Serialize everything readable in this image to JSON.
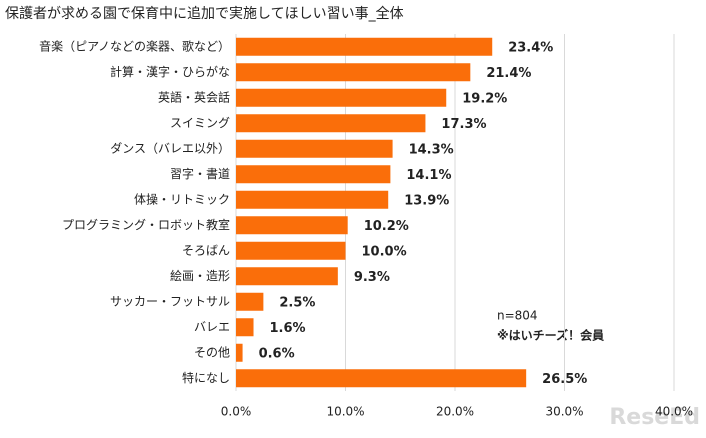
{
  "chart_data": {
    "type": "barh",
    "title": "保護者が求める園で保育中に追加で実施してほしい習い事_全体",
    "categories": [
      "音楽（ピアノなどの楽器、歌など）",
      "計算・漢字・ひらがな",
      "英語・英会話",
      "スイミング",
      "ダンス（バレエ以外）",
      "習字・書道",
      "体操・リトミック",
      "プログラミング・ロボット教室",
      "そろばん",
      "絵画・造形",
      "サッカー・フットサル",
      "バレエ",
      "その他",
      "特になし"
    ],
    "values": [
      23.4,
      21.4,
      19.2,
      17.3,
      14.3,
      14.1,
      13.9,
      10.2,
      10.0,
      9.3,
      2.5,
      1.6,
      0.6,
      26.5
    ],
    "value_labels": [
      "23.4%",
      "21.4%",
      "19.2%",
      "17.3%",
      "14.3%",
      "14.1%",
      "13.9%",
      "10.2%",
      "10.0%",
      "9.3%",
      "2.5%",
      "1.6%",
      "0.6%",
      "26.5%"
    ],
    "color": "#fa6e0a",
    "xlim": [
      0,
      40
    ],
    "xticks": [
      {
        "value": 0,
        "label": "0.0%"
      },
      {
        "value": 10,
        "label": "10.0%"
      },
      {
        "value": 20,
        "label": "20.0%"
      },
      {
        "value": 30,
        "label": "30.0%"
      },
      {
        "value": 40,
        "label": "40.0%"
      }
    ],
    "grid": true,
    "annotations": [
      "n=804",
      "※はいチーズ！会員"
    ],
    "watermark": "ReseEd"
  }
}
